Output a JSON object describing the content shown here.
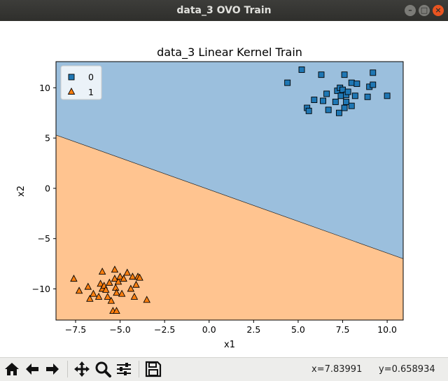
{
  "window": {
    "title": "data_3 OVO Train",
    "controls": [
      "minimize",
      "maximize",
      "close"
    ]
  },
  "chart_data": {
    "type": "scatter",
    "title": "data_3 Linear Kernel Train",
    "xlabel": "x1",
    "ylabel": "x2",
    "xlim": [
      -8.6,
      10.9
    ],
    "ylim": [
      -13.1,
      12.6
    ],
    "xticks": [
      -7.5,
      -5.0,
      -2.5,
      0.0,
      2.5,
      5.0,
      7.5,
      10.0
    ],
    "xtick_labels": [
      "−7.5",
      "−5.0",
      "−2.5",
      "0.0",
      "2.5",
      "5.0",
      "7.5",
      "10.0"
    ],
    "yticks": [
      -10,
      -5,
      0,
      5,
      10
    ],
    "ytick_labels": [
      "−10",
      "−5",
      "0",
      "5",
      "10"
    ],
    "grid": false,
    "legend": {
      "placement": "top-left",
      "entries": [
        "0",
        "1"
      ]
    },
    "decision_boundary": {
      "x": [
        -8.6,
        10.9
      ],
      "y": [
        5.3,
        -7.0
      ]
    },
    "region_colors": {
      "0": "#9bbfdd",
      "1": "#ffc490"
    },
    "series": [
      {
        "name": "0",
        "marker": "square",
        "color": "#1f77b4",
        "x": [
          4.4,
          5.2,
          5.5,
          5.6,
          5.9,
          6.3,
          6.4,
          6.6,
          6.7,
          7.1,
          7.2,
          7.3,
          7.35,
          7.4,
          7.5,
          7.6,
          7.6,
          7.7,
          7.7,
          7.8,
          8.0,
          8.0,
          8.2,
          8.3,
          8.9,
          9.0,
          9.2,
          9.2,
          10.0
        ],
        "y": [
          10.5,
          11.8,
          8.0,
          7.7,
          8.8,
          11.3,
          8.7,
          9.4,
          7.8,
          8.6,
          9.7,
          7.5,
          10.0,
          9.2,
          9.8,
          11.3,
          8.0,
          8.6,
          9.3,
          9.6,
          8.2,
          10.5,
          9.2,
          10.4,
          9.1,
          10.1,
          10.3,
          11.5,
          9.2
        ]
      },
      {
        "name": "1",
        "marker": "triangle",
        "color": "#ff7f0e",
        "x": [
          -7.6,
          -7.3,
          -6.8,
          -6.7,
          -6.5,
          -6.2,
          -6.1,
          -6.0,
          -6.0,
          -5.9,
          -5.8,
          -5.7,
          -5.6,
          -5.5,
          -5.4,
          -5.3,
          -5.3,
          -5.25,
          -5.2,
          -5.2,
          -5.1,
          -5.0,
          -4.9,
          -4.8,
          -4.6,
          -4.4,
          -4.3,
          -4.2,
          -4.1,
          -4.0,
          -3.9,
          -3.5
        ],
        "y": [
          -9.0,
          -10.2,
          -9.8,
          -11.0,
          -10.5,
          -10.8,
          -9.5,
          -10.0,
          -8.3,
          -9.7,
          -10.1,
          -10.8,
          -9.4,
          -11.2,
          -12.2,
          -9.0,
          -8.1,
          -9.9,
          -12.2,
          -10.4,
          -9.3,
          -8.8,
          -10.5,
          -9.0,
          -8.4,
          -10.0,
          -8.8,
          -10.8,
          -9.6,
          -8.8,
          -8.9,
          -11.1
        ]
      }
    ]
  },
  "toolbar": {
    "buttons": [
      {
        "icon": "home-icon",
        "name": "home-button"
      },
      {
        "icon": "back-arrow-icon",
        "name": "back-button"
      },
      {
        "icon": "forward-arrow-icon",
        "name": "forward-button"
      },
      {
        "icon": "pan-icon",
        "name": "pan-button"
      },
      {
        "icon": "zoom-icon",
        "name": "zoom-button"
      },
      {
        "icon": "configure-subplots-icon",
        "name": "configure-subplots-button"
      },
      {
        "icon": "save-icon",
        "name": "save-button"
      }
    ],
    "x_readout": "x=7.83991",
    "y_readout": "y=0.658934"
  }
}
